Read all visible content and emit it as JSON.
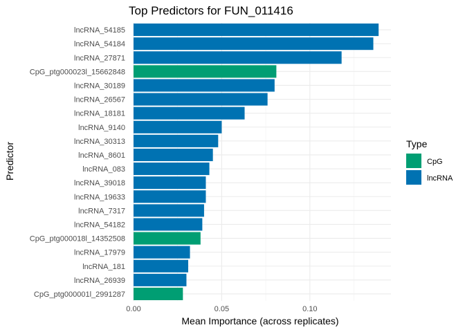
{
  "chart_data": {
    "type": "bar",
    "orientation": "horizontal",
    "title": "Top Predictors for FUN_011416",
    "xlabel": "Mean Importance (across replicates)",
    "ylabel": "Predictor",
    "xlim": [
      0,
      0.146
    ],
    "xticks": [
      0,
      0.05,
      0.1
    ],
    "xtick_labels": [
      "0.00",
      "0.05",
      "0.10"
    ],
    "grid": true,
    "legend": {
      "title": "Type",
      "placement": "right",
      "entries": [
        {
          "name": "CpG",
          "color": "#009E73"
        },
        {
          "name": "lncRNA",
          "color": "#0072B2"
        }
      ]
    },
    "categories": [
      "lncRNA_54185",
      "lncRNA_54184",
      "lncRNA_27871",
      "CpG_ptg000023l_15662848",
      "lncRNA_30189",
      "lncRNA_26567",
      "lncRNA_18181",
      "lncRNA_9140",
      "lncRNA_30313",
      "lncRNA_8601",
      "lncRNA_083",
      "lncRNA_39018",
      "lncRNA_19633",
      "lncRNA_7317",
      "lncRNA_54182",
      "CpG_ptg000018l_14352508",
      "lncRNA_17979",
      "lncRNA_181",
      "lncRNA_26939",
      "CpG_ptg000001l_2991287"
    ],
    "values": [
      0.139,
      0.136,
      0.118,
      0.081,
      0.08,
      0.076,
      0.063,
      0.05,
      0.048,
      0.045,
      0.043,
      0.041,
      0.041,
      0.04,
      0.039,
      0.038,
      0.032,
      0.031,
      0.03,
      0.028
    ],
    "types": [
      "lncRNA",
      "lncRNA",
      "lncRNA",
      "CpG",
      "lncRNA",
      "lncRNA",
      "lncRNA",
      "lncRNA",
      "lncRNA",
      "lncRNA",
      "lncRNA",
      "lncRNA",
      "lncRNA",
      "lncRNA",
      "lncRNA",
      "CpG",
      "lncRNA",
      "lncRNA",
      "lncRNA",
      "CpG"
    ]
  }
}
